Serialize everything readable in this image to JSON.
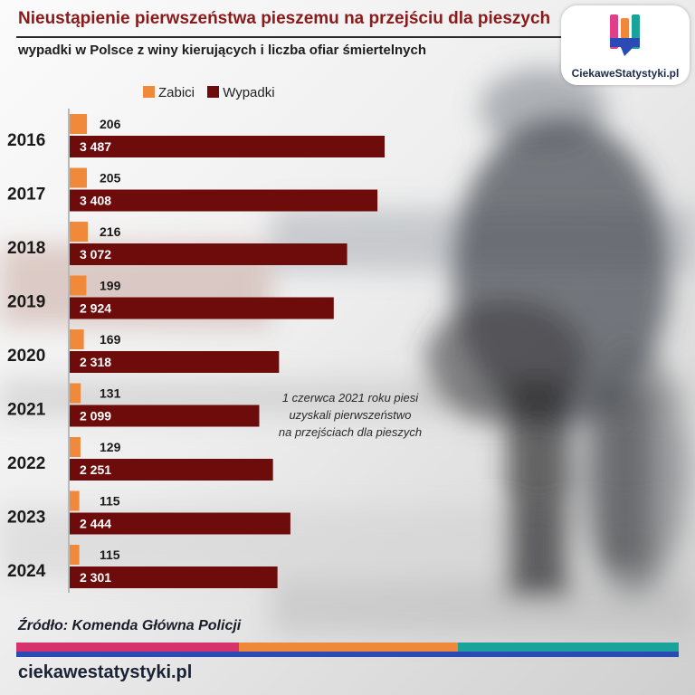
{
  "title": "Nieustąpienie pierwszeństwa pieszemu na przejściu dla pieszych",
  "subtitle": "wypadki w Polsce z winy kierujących i liczba ofiar śmiertelnych",
  "logo": {
    "text": "CiekaweStatystyki.pl",
    "icon": "bar-chart-logo-icon"
  },
  "annotation": [
    "1 czerwca 2021 roku piesi",
    "uzyskali pierwszeństwo",
    "na przejściach dla pieszych"
  ],
  "source": "Źródło: Komenda Główna Policji",
  "footer_site": "ciekawestatystyki.pl",
  "colors": {
    "killed": "#f08a3a",
    "accidents": "#6e0c0c",
    "title": "#8b1a1a",
    "stripe1": "#d6336c",
    "stripe2": "#f0883a",
    "stripe3": "#1aa39a",
    "stripe_base": "#2a4bb5"
  },
  "chart_data": {
    "type": "bar",
    "orientation": "horizontal",
    "categories": [
      "2016",
      "2017",
      "2018",
      "2019",
      "2020",
      "2021",
      "2022",
      "2023",
      "2024"
    ],
    "series": [
      {
        "name": "Zabici",
        "values": [
          206,
          205,
          216,
          199,
          169,
          131,
          129,
          115,
          115
        ],
        "labels": [
          "206",
          "205",
          "216",
          "199",
          "169",
          "131",
          "129",
          "115",
          "115"
        ]
      },
      {
        "name": "Wypadki",
        "values": [
          3487,
          3408,
          3072,
          2924,
          2318,
          2099,
          2251,
          2444,
          2301
        ],
        "labels": [
          "3 487",
          "3 408",
          "3 072",
          "2 924",
          "2 318",
          "2 099",
          "2 251",
          "2 444",
          "2 301"
        ]
      }
    ],
    "legend": "top",
    "grid": false
  }
}
